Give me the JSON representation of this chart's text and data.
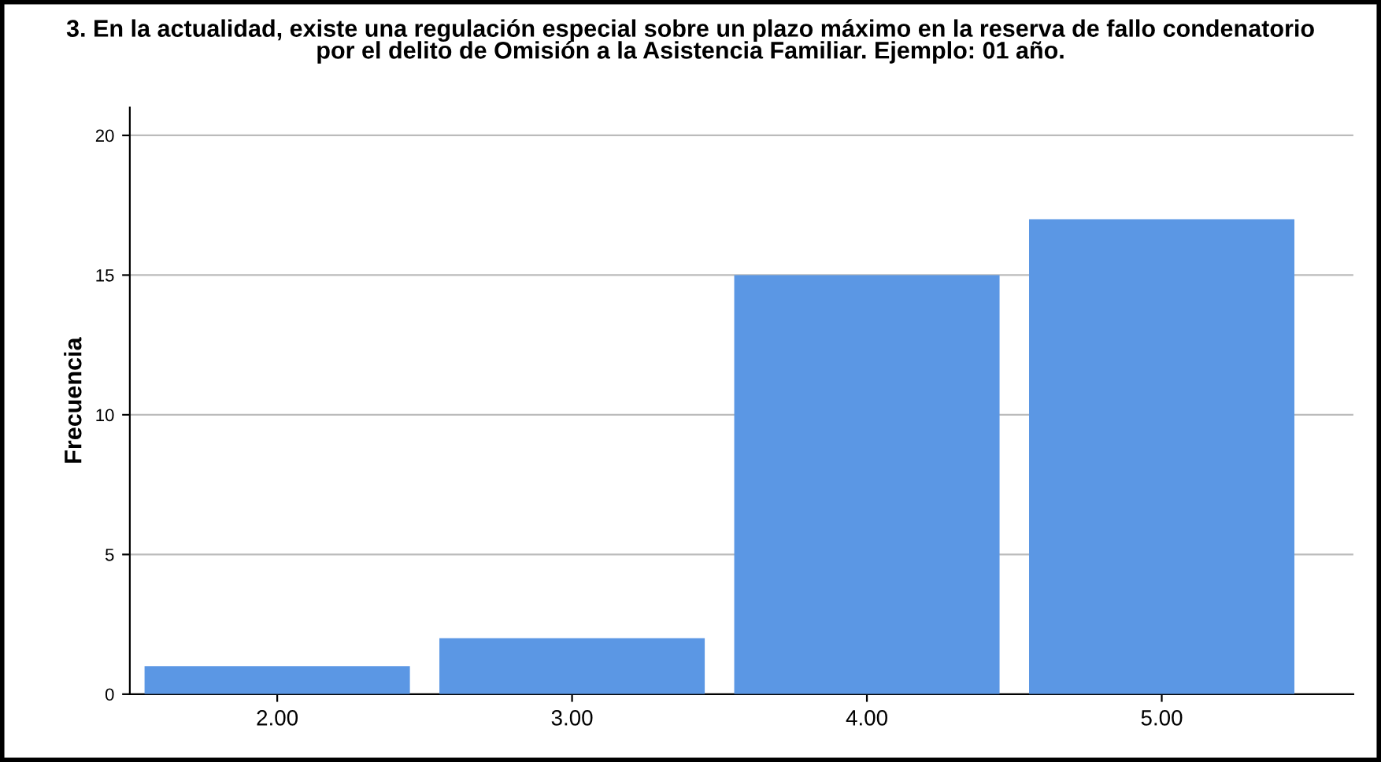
{
  "chart_data": {
    "type": "bar",
    "title": "3. En la actualidad, existe una regulación especial sobre un plazo máximo en la reserva de fallo condenatorio\npor el delito de Omisión a la Asistencia Familiar. Ejemplo: 01 año.",
    "ylabel": "Frecuencia",
    "categories": [
      "2.00",
      "3.00",
      "4.00",
      "5.00"
    ],
    "values": [
      1,
      2,
      15,
      17
    ],
    "color": "#5b97e4",
    "ylim": [
      0,
      21
    ],
    "yticks": [
      0,
      5,
      10,
      15,
      20
    ],
    "grid": "y"
  }
}
